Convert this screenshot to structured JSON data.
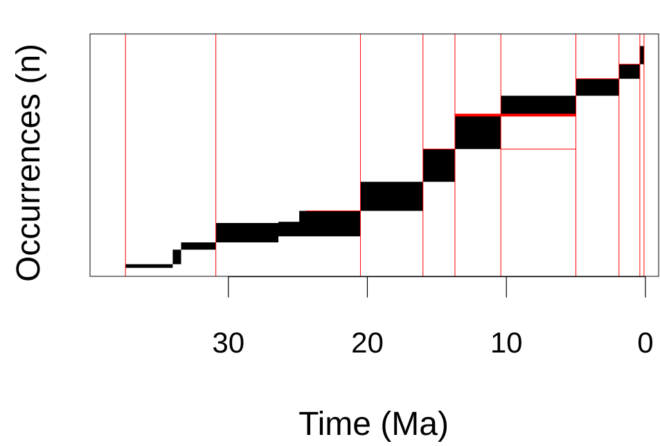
{
  "chart_data": {
    "type": "area",
    "xlabel": "Time (Ma)",
    "ylabel": "Occurrences (n)",
    "x_axis": {
      "reversed": true,
      "domain": [
        39.95,
        -0.95
      ],
      "ticks": [
        30,
        20,
        10,
        0
      ],
      "tick_labels": [
        "30",
        "20",
        "10",
        "0"
      ]
    },
    "y_axis": {
      "domain": [
        0,
        1
      ],
      "tick_labels_shown": false
    },
    "grid": false,
    "legend": "none",
    "colors": {
      "range_fill": "#000000",
      "boundary_line": "#ff0000",
      "frame": "#000000"
    },
    "boundaries_ma": [
      37.4,
      30.9,
      20.5,
      16.0,
      13.7,
      10.4,
      5.0,
      1.9,
      0.4,
      0.1
    ],
    "upper_bound_segments": [
      {
        "x0": 37.4,
        "x1": 34.0,
        "y": 0.05
      },
      {
        "x0": 34.0,
        "x1": 33.4,
        "y": 0.11
      },
      {
        "x0": 33.4,
        "x1": 30.9,
        "y": 0.14
      },
      {
        "x0": 30.9,
        "x1": 26.4,
        "y": 0.22
      },
      {
        "x0": 26.4,
        "x1": 24.9,
        "y": 0.225
      },
      {
        "x0": 24.9,
        "x1": 20.5,
        "y": 0.27
      },
      {
        "x0": 20.5,
        "x1": 16.0,
        "y": 0.39
      },
      {
        "x0": 16.0,
        "x1": 13.7,
        "y": 0.525
      },
      {
        "x0": 13.7,
        "x1": 10.4,
        "y": 0.665
      },
      {
        "x0": 10.4,
        "x1": 5.0,
        "y": 0.745
      },
      {
        "x0": 5.0,
        "x1": 1.9,
        "y": 0.815
      },
      {
        "x0": 1.9,
        "x1": 0.4,
        "y": 0.875
      },
      {
        "x0": 0.4,
        "x1": 0.1,
        "y": 0.95
      }
    ],
    "lower_bound_segments": [
      {
        "x0": 37.4,
        "x1": 34.0,
        "y": 0.035
      },
      {
        "x0": 34.0,
        "x1": 33.4,
        "y": 0.05
      },
      {
        "x0": 33.4,
        "x1": 30.9,
        "y": 0.11
      },
      {
        "x0": 30.9,
        "x1": 26.4,
        "y": 0.14
      },
      {
        "x0": 26.4,
        "x1": 20.5,
        "y": 0.165
      },
      {
        "x0": 20.5,
        "x1": 16.0,
        "y": 0.27
      },
      {
        "x0": 16.0,
        "x1": 13.7,
        "y": 0.39
      },
      {
        "x0": 13.7,
        "x1": 10.4,
        "y": 0.525
      },
      {
        "x0": 10.4,
        "x1": 5.0,
        "y": 0.665
      },
      {
        "x0": 5.0,
        "x1": 1.9,
        "y": 0.745
      },
      {
        "x0": 1.9,
        "x1": 0.4,
        "y": 0.815
      },
      {
        "x0": 0.4,
        "x1": 0.1,
        "y": 0.875
      }
    ],
    "red_thin_segments": [
      {
        "x0": 24.4,
        "x1": 20.5,
        "y": 0.27
      },
      {
        "x0": 16.0,
        "x1": 13.7,
        "y": 0.525
      },
      {
        "x0": 13.7,
        "x1": 10.4,
        "y": 0.665
      },
      {
        "x0": 10.4,
        "x1": 5.0,
        "y": 0.525
      },
      {
        "x0": 10.4,
        "x1": 5.0,
        "y": 0.665
      },
      {
        "x0": 5.0,
        "x1": 1.9,
        "y": 0.815
      },
      {
        "x0": 1.9,
        "x1": 0.4,
        "y": 0.875
      }
    ],
    "red_thick_segments": [
      {
        "x0": 13.7,
        "x1": 5.0,
        "y": 0.665
      }
    ]
  }
}
